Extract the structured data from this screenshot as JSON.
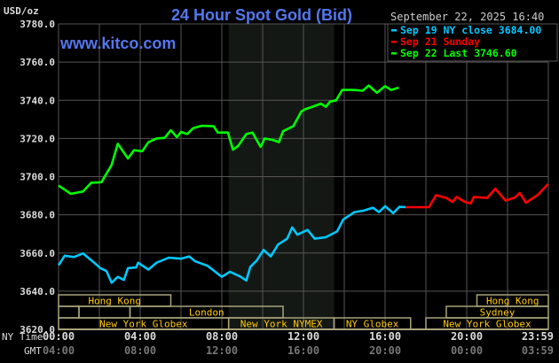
{
  "chart_data": {
    "type": "line",
    "title": "24 Hour Spot Gold (Bid)",
    "watermark": "www.kitco.com",
    "ylabel": "USD/oz",
    "timestamp": "September 22, 2025 16:40",
    "ylim": [
      3620,
      3780
    ],
    "yticks": [
      "3780.0",
      "3760.0",
      "3740.0",
      "3720.0",
      "3700.0",
      "3680.0",
      "3660.0",
      "3640.0",
      "3620.0"
    ],
    "xlim": [
      "00:00",
      "24:00"
    ],
    "grid": true,
    "legend_position": "top-right",
    "x_axis_rows": [
      {
        "label": "NY Time",
        "ticks": [
          "00:00",
          "04:00",
          "08:00",
          "12:00",
          "16:00",
          "20:00",
          "23:59"
        ]
      },
      {
        "label": "GMT",
        "ticks": [
          "04:00",
          "08:00",
          "12:00",
          "16:00",
          "20:00",
          "00:00",
          "03:59"
        ]
      }
    ],
    "highlight_range": [
      "08:20",
      "13:30"
    ],
    "colors": {
      "background": "#000000",
      "grid": "#555555",
      "highlight": "#141814",
      "title": "#5577ee",
      "session_border": "#a8a47c",
      "session_text": "#ffcc00",
      "axis_text": "#dddddd",
      "gmt_text": "#777777"
    },
    "series": [
      {
        "name": "Sep 19 NY close 3684.00",
        "color": "#00c8ff",
        "points": [
          [
            "00:00",
            3653.6
          ],
          [
            "00:18",
            3658.6
          ],
          [
            "00:45",
            3657.9
          ],
          [
            "01:12",
            3659.8
          ],
          [
            "01:48",
            3654.4
          ],
          [
            "02:03",
            3652.1
          ],
          [
            "02:21",
            3650.5
          ],
          [
            "02:36",
            3644.4
          ],
          [
            "02:54",
            3647.5
          ],
          [
            "03:12",
            3645.9
          ],
          [
            "03:24",
            3652.1
          ],
          [
            "03:48",
            3652.4
          ],
          [
            "03:54",
            3654.9
          ],
          [
            "04:24",
            3651.3
          ],
          [
            "04:48",
            3654.9
          ],
          [
            "05:24",
            3657.5
          ],
          [
            "06:00",
            3657.0
          ],
          [
            "06:24",
            3658.2
          ],
          [
            "06:42",
            3655.6
          ],
          [
            "07:18",
            3653.3
          ],
          [
            "08:00",
            3647.5
          ],
          [
            "08:24",
            3650.2
          ],
          [
            "08:54",
            3647.7
          ],
          [
            "09:12",
            3645.6
          ],
          [
            "09:24",
            3652.8
          ],
          [
            "09:42",
            3655.9
          ],
          [
            "10:03",
            3661.6
          ],
          [
            "10:24",
            3658.2
          ],
          [
            "10:45",
            3664.4
          ],
          [
            "11:12",
            3667.5
          ],
          [
            "11:27",
            3673.4
          ],
          [
            "11:42",
            3669.6
          ],
          [
            "12:12",
            3672.1
          ],
          [
            "12:33",
            3667.5
          ],
          [
            "13:06",
            3668.3
          ],
          [
            "13:39",
            3671.3
          ],
          [
            "13:57",
            3677.5
          ],
          [
            "14:30",
            3681.4
          ],
          [
            "14:57",
            3682.2
          ],
          [
            "15:24",
            3683.7
          ],
          [
            "15:42",
            3681.4
          ],
          [
            "16:00",
            3684.5
          ],
          [
            "16:24",
            3680.9
          ],
          [
            "16:42",
            3684.2
          ],
          [
            "17:00",
            3684.0
          ]
        ]
      },
      {
        "name": "Sep 21 Sunday",
        "color": "#ff0000",
        "points": [
          [
            "17:00",
            3684.0
          ],
          [
            "18:09",
            3684.0
          ],
          [
            "18:30",
            3690.3
          ],
          [
            "19:00",
            3688.8
          ],
          [
            "19:18",
            3686.8
          ],
          [
            "19:30",
            3689.4
          ],
          [
            "19:54",
            3686.8
          ],
          [
            "20:12",
            3686.0
          ],
          [
            "20:21",
            3689.4
          ],
          [
            "21:00",
            3688.8
          ],
          [
            "21:24",
            3693.7
          ],
          [
            "21:54",
            3687.5
          ],
          [
            "22:21",
            3689.0
          ],
          [
            "22:36",
            3691.4
          ],
          [
            "22:54",
            3686.3
          ],
          [
            "23:30",
            3690.6
          ],
          [
            "23:59",
            3696.1
          ]
        ]
      },
      {
        "name": "Sep 22 Last 3746.60",
        "color": "#00ff00",
        "points": [
          [
            "00:00",
            3695.3
          ],
          [
            "00:36",
            3691.0
          ],
          [
            "01:12",
            3692.2
          ],
          [
            "01:36",
            3696.8
          ],
          [
            "02:06",
            3697.1
          ],
          [
            "02:36",
            3706.1
          ],
          [
            "02:54",
            3717.2
          ],
          [
            "03:24",
            3709.5
          ],
          [
            "03:42",
            3713.8
          ],
          [
            "04:06",
            3713.3
          ],
          [
            "04:24",
            3718.0
          ],
          [
            "04:48",
            3720.0
          ],
          [
            "05:12",
            3720.3
          ],
          [
            "05:30",
            3724.3
          ],
          [
            "05:48",
            3720.7
          ],
          [
            "06:00",
            3723.4
          ],
          [
            "06:18",
            3722.3
          ],
          [
            "06:36",
            3725.4
          ],
          [
            "07:00",
            3726.6
          ],
          [
            "07:36",
            3726.4
          ],
          [
            "07:48",
            3723.1
          ],
          [
            "08:18",
            3723.1
          ],
          [
            "08:33",
            3714.1
          ],
          [
            "08:48",
            3716.1
          ],
          [
            "09:12",
            3722.3
          ],
          [
            "09:30",
            3723.1
          ],
          [
            "09:54",
            3715.6
          ],
          [
            "10:06",
            3720.0
          ],
          [
            "10:30",
            3719.2
          ],
          [
            "10:48",
            3718.1
          ],
          [
            "11:00",
            3723.8
          ],
          [
            "11:30",
            3726.4
          ],
          [
            "11:54",
            3734.2
          ],
          [
            "12:06",
            3735.4
          ],
          [
            "12:21",
            3736.2
          ],
          [
            "12:51",
            3738.2
          ],
          [
            "13:06",
            3736.6
          ],
          [
            "13:18",
            3739.3
          ],
          [
            "13:36",
            3740.0
          ],
          [
            "13:54",
            3745.4
          ],
          [
            "14:27",
            3745.4
          ],
          [
            "14:54",
            3745.0
          ],
          [
            "15:12",
            3747.7
          ],
          [
            "15:36",
            3743.9
          ],
          [
            "16:00",
            3747.4
          ],
          [
            "16:18",
            3745.4
          ],
          [
            "16:40",
            3746.6
          ]
        ]
      }
    ],
    "sessions": [
      [
        {
          "label": "Hong Kong",
          "start": "00:00",
          "end": "05:30"
        },
        {
          "label": "Hong Kong",
          "start": "20:30",
          "end": "24:00"
        }
      ],
      [
        {
          "label": "",
          "start": "00:00",
          "end": "01:00"
        },
        {
          "label": "",
          "start": "01:00",
          "end": "03:30"
        },
        {
          "label": "London",
          "start": "03:30",
          "end": "11:00"
        },
        {
          "label": "Sydney",
          "start": "19:00",
          "end": "24:00"
        }
      ],
      [
        {
          "label": "New York Globex",
          "start": "00:00",
          "end": "08:20"
        },
        {
          "label": "New York NYMEX",
          "start": "08:20",
          "end": "13:30"
        },
        {
          "label": "NY Globex",
          "start": "13:30",
          "end": "17:15"
        },
        {
          "label": "New York Globex",
          "start": "18:00",
          "end": "24:00"
        }
      ]
    ]
  }
}
